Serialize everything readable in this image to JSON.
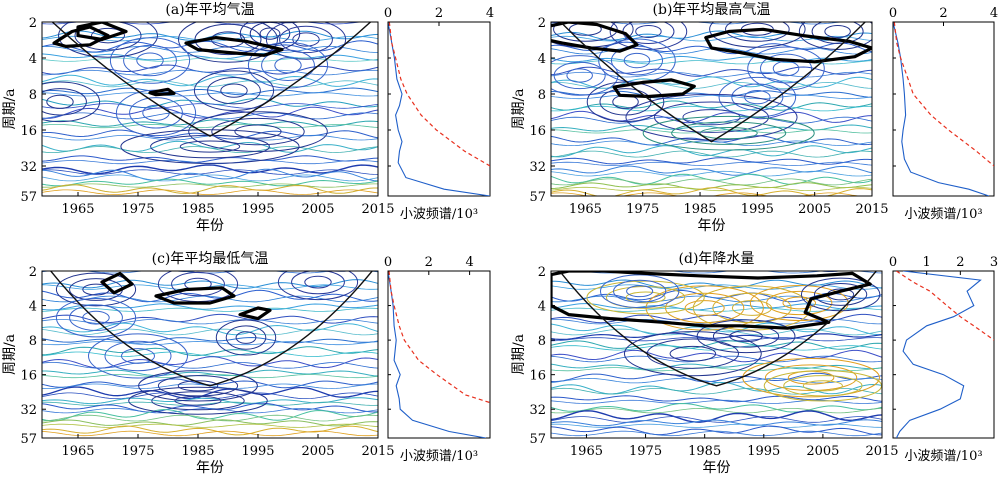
{
  "panels": [
    {
      "title": "(a)年平均气温",
      "xlabel": "年份",
      "ylabel": "周期/a",
      "xticks": [
        1965,
        1975,
        1985,
        1995,
        2005,
        2015
      ],
      "yticks": [
        2,
        4,
        8,
        16,
        32,
        57
      ],
      "spectrum_xticks": [
        0,
        2,
        4
      ],
      "spectrum_xlabel": "小波频谱/10³"
    },
    {
      "title": "(b)年平均最高气温",
      "xlabel": "年份",
      "ylabel": "周期/a",
      "xticks": [
        1965,
        1975,
        1985,
        1995,
        2005,
        2015
      ],
      "yticks": [
        2,
        4,
        8,
        16,
        32,
        57
      ],
      "spectrum_xticks": [
        0,
        2,
        4
      ],
      "spectrum_xlabel": "小波频谱/10³"
    },
    {
      "title": "(c)年平均最低气温",
      "xlabel": "年份",
      "ylabel": "周期/a",
      "xticks": [
        1965,
        1975,
        1985,
        1995,
        2005,
        2015
      ],
      "yticks": [
        2,
        4,
        8,
        16,
        32,
        57
      ],
      "spectrum_xticks": [
        0,
        2,
        4
      ],
      "spectrum_xlabel": "小波频谱/10³"
    },
    {
      "title": "(d)年降水量",
      "xlabel": "年份",
      "ylabel": "周期/a",
      "xticks": [
        1965,
        1975,
        1985,
        1995,
        2005,
        2015
      ],
      "yticks": [
        2,
        4,
        8,
        16,
        32,
        57
      ],
      "spectrum_xticks": [
        0,
        1,
        2,
        3
      ],
      "spectrum_xlabel": "小波频谱/10³"
    }
  ],
  "chart_data": [
    {
      "type": "heatmap",
      "title": "(a)年平均气温",
      "xlabel": "年份",
      "ylabel": "周期/a",
      "xlim": [
        1959,
        2015
      ],
      "ylim": [
        2,
        57
      ],
      "yscale": "log2",
      "cone_of_influence_apex": [
        1987,
        18
      ],
      "spectrum": {
        "xlim": [
          0,
          4
        ],
        "global_wavelet": [
          [
            2,
            0.0
          ],
          [
            3,
            0.15
          ],
          [
            4,
            0.25
          ],
          [
            6,
            0.35
          ],
          [
            8,
            0.55
          ],
          [
            10,
            0.45
          ],
          [
            12,
            0.3
          ],
          [
            16,
            0.4
          ],
          [
            20,
            0.55
          ],
          [
            24,
            0.45
          ],
          [
            30,
            0.4
          ],
          [
            40,
            0.7
          ],
          [
            50,
            2.2
          ],
          [
            57,
            4.0
          ]
        ],
        "significance_95": [
          [
            2,
            0.05
          ],
          [
            3,
            0.15
          ],
          [
            4,
            0.3
          ],
          [
            6,
            0.5
          ],
          [
            8,
            0.75
          ],
          [
            12,
            1.3
          ],
          [
            16,
            1.9
          ],
          [
            24,
            3.0
          ],
          [
            32,
            4.0
          ]
        ],
        "colors": {
          "spectrum": "#1f5fc9",
          "significance": "#e8301e"
        }
      }
    },
    {
      "type": "heatmap",
      "title": "(b)年平均最高气温",
      "xlabel": "年份",
      "ylabel": "周期/a",
      "xlim": [
        1959,
        2015
      ],
      "ylim": [
        2,
        57
      ],
      "yscale": "log2",
      "cone_of_influence_apex": [
        1987,
        20
      ],
      "spectrum": {
        "xlim": [
          0,
          4
        ],
        "global_wavelet": [
          [
            2,
            0.0
          ],
          [
            3,
            0.2
          ],
          [
            4,
            0.3
          ],
          [
            6,
            0.4
          ],
          [
            8,
            0.45
          ],
          [
            12,
            0.5
          ],
          [
            16,
            0.4
          ],
          [
            20,
            0.35
          ],
          [
            28,
            0.45
          ],
          [
            36,
            0.7
          ],
          [
            44,
            1.8
          ],
          [
            50,
            3.0
          ],
          [
            57,
            3.8
          ]
        ],
        "significance_95": [
          [
            2,
            0.05
          ],
          [
            3,
            0.15
          ],
          [
            4,
            0.3
          ],
          [
            6,
            0.6
          ],
          [
            8,
            0.8
          ],
          [
            12,
            1.5
          ],
          [
            16,
            2.2
          ],
          [
            24,
            3.3
          ],
          [
            32,
            4.0
          ]
        ],
        "colors": {
          "spectrum": "#1f5fc9",
          "significance": "#e8301e"
        }
      }
    },
    {
      "type": "heatmap",
      "title": "(c)年平均最低气温",
      "xlabel": "年份",
      "ylabel": "周期/a",
      "xlim": [
        1959,
        2015
      ],
      "ylim": [
        2,
        57
      ],
      "yscale": "log2",
      "cone_of_influence_apex": [
        1987,
        20
      ],
      "spectrum": {
        "xlim": [
          0,
          5
        ],
        "global_wavelet": [
          [
            2,
            0.0
          ],
          [
            3,
            0.15
          ],
          [
            4,
            0.25
          ],
          [
            6,
            0.3
          ],
          [
            8,
            0.4
          ],
          [
            12,
            0.3
          ],
          [
            16,
            0.6
          ],
          [
            20,
            0.4
          ],
          [
            26,
            0.55
          ],
          [
            32,
            0.6
          ],
          [
            40,
            1.2
          ],
          [
            50,
            3.0
          ],
          [
            57,
            4.8
          ]
        ],
        "significance_95": [
          [
            2,
            0.05
          ],
          [
            3,
            0.15
          ],
          [
            4,
            0.3
          ],
          [
            6,
            0.55
          ],
          [
            8,
            0.8
          ],
          [
            12,
            1.5
          ],
          [
            16,
            2.4
          ],
          [
            24,
            3.8
          ],
          [
            28,
            5.0
          ]
        ],
        "colors": {
          "spectrum": "#1f5fc9",
          "significance": "#e8301e"
        }
      }
    },
    {
      "type": "heatmap",
      "title": "(d)年降水量",
      "xlabel": "年份",
      "ylabel": "周期/a",
      "xlim": [
        1959,
        2015
      ],
      "ylim": [
        2,
        57
      ],
      "yscale": "log2",
      "cone_of_influence_apex": [
        1987,
        20
      ],
      "spectrum": {
        "xlim": [
          0,
          3
        ],
        "global_wavelet": [
          [
            2,
            0.3
          ],
          [
            2.4,
            2.6
          ],
          [
            3,
            2.2
          ],
          [
            4,
            2.4
          ],
          [
            5,
            1.8
          ],
          [
            6,
            1.0
          ],
          [
            8,
            0.4
          ],
          [
            10,
            0.3
          ],
          [
            13,
            0.6
          ],
          [
            16,
            1.5
          ],
          [
            20,
            2.1
          ],
          [
            26,
            2.0
          ],
          [
            32,
            1.4
          ],
          [
            40,
            0.5
          ],
          [
            50,
            0.2
          ],
          [
            57,
            0.1
          ]
        ],
        "significance_95": [
          [
            2,
            0.1
          ],
          [
            2.5,
            0.6
          ],
          [
            3,
            1.1
          ],
          [
            4,
            1.6
          ],
          [
            5,
            2.0
          ],
          [
            6,
            2.4
          ],
          [
            8,
            3.0
          ]
        ],
        "colors": {
          "spectrum": "#1f5fc9",
          "significance": "#e8301e"
        }
      }
    }
  ]
}
